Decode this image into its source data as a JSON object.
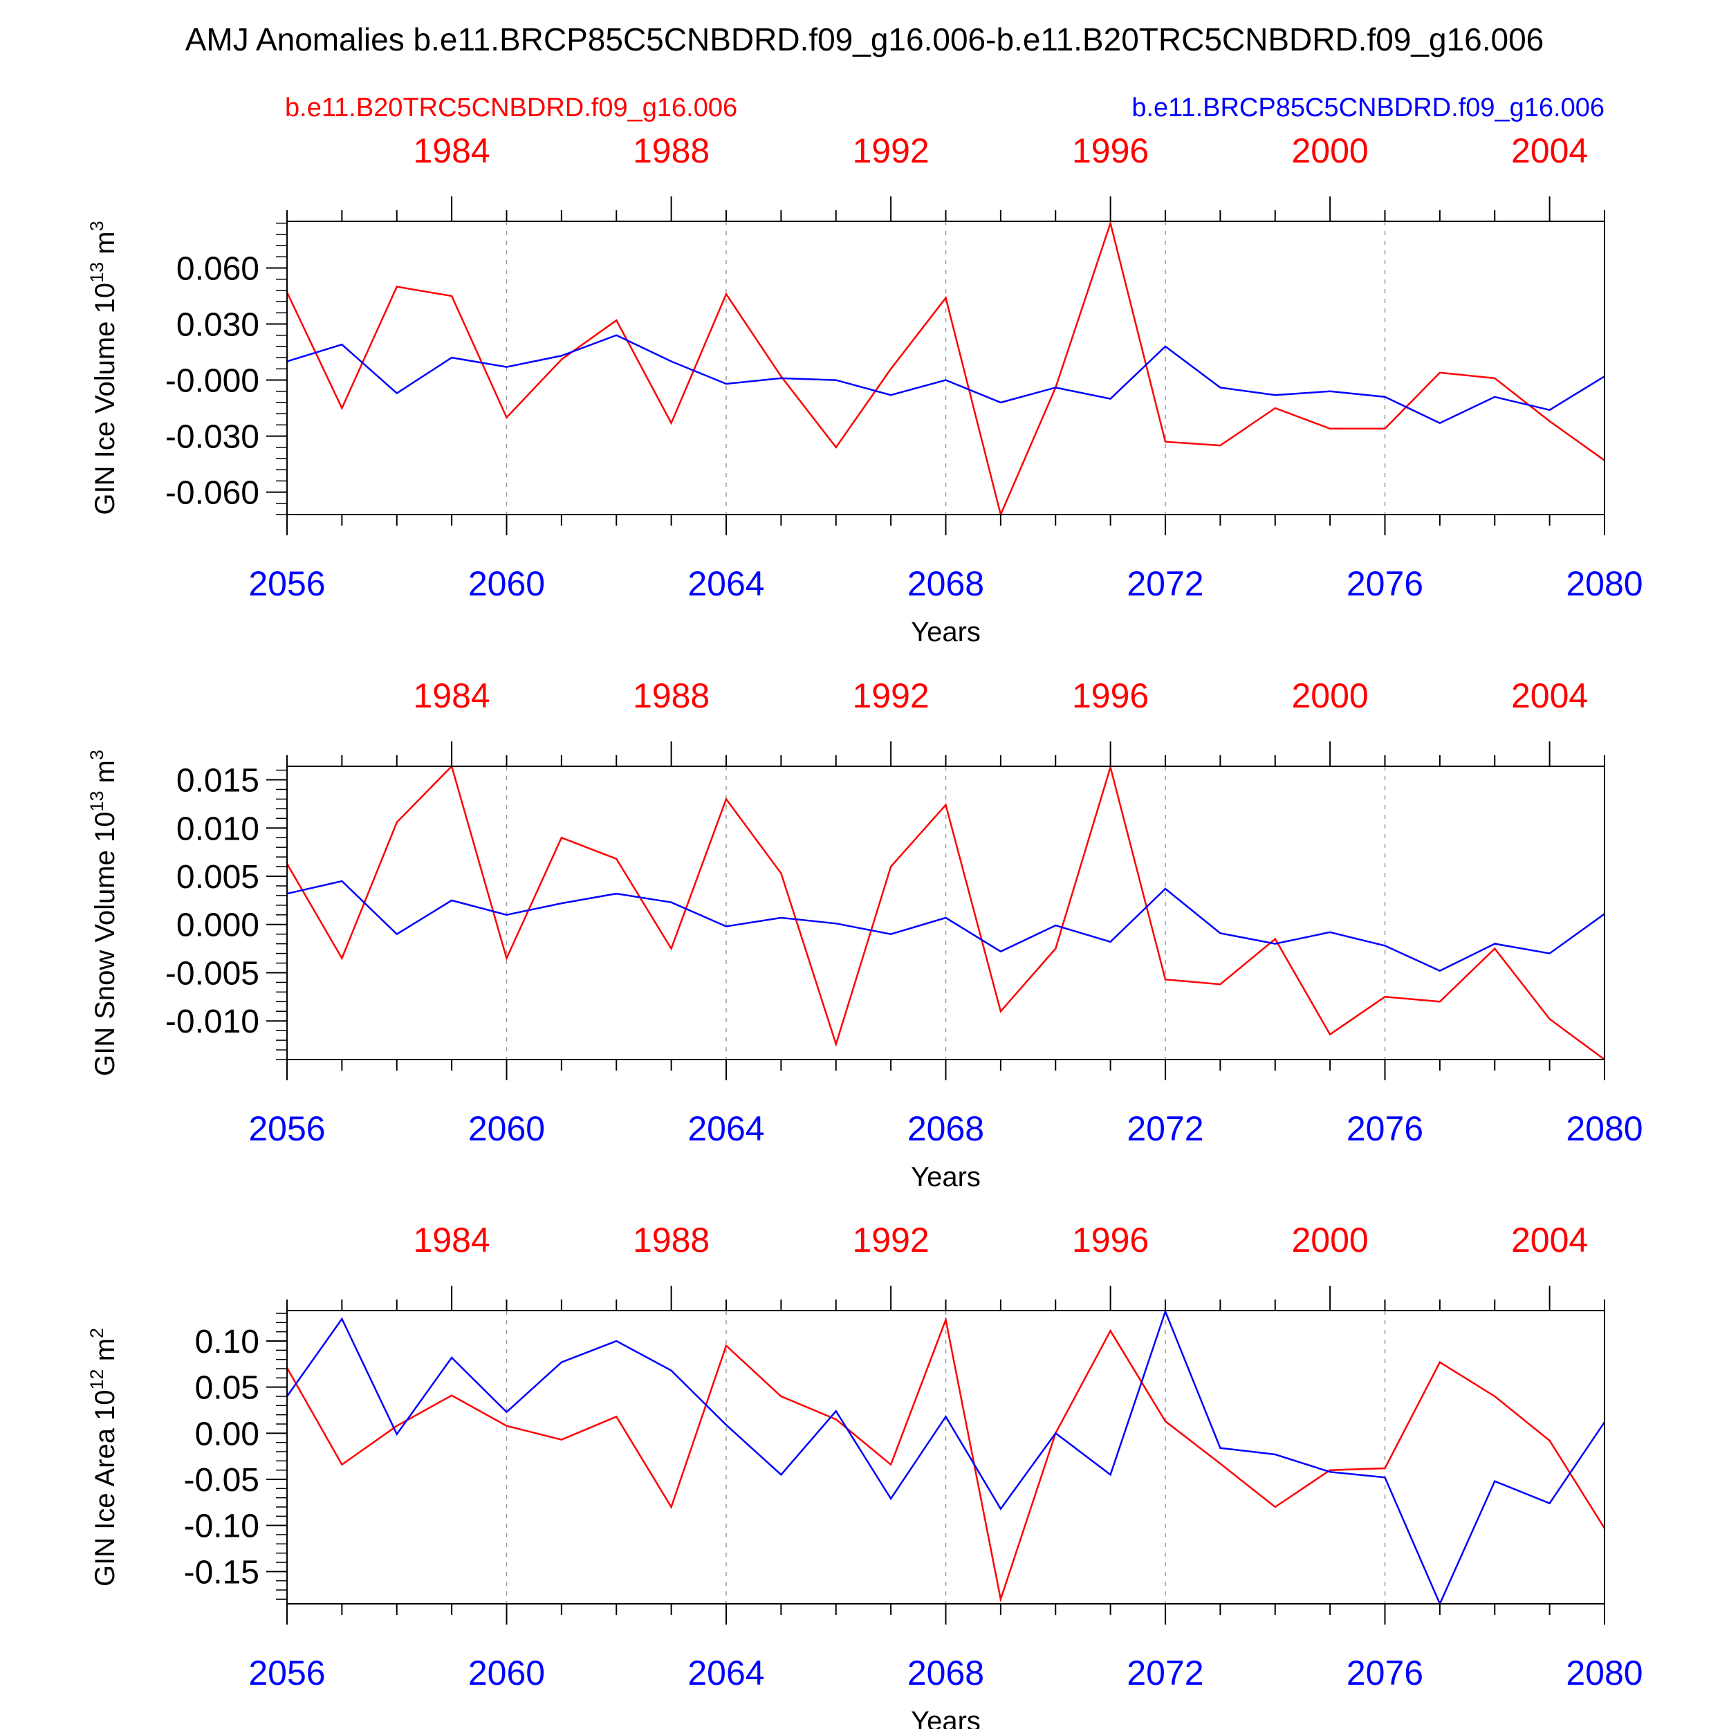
{
  "title": "AMJ Anomalies b.e11.BRCP85C5CNBDRD.f09_g16.006-b.e11.B20TRC5CNBDRD.f09_g16.006",
  "legend": {
    "red_label": "b.e11.B20TRC5CNBDRD.f09_g16.006",
    "blue_label": "b.e11.BRCP85C5CNBDRD.f09_g16.006"
  },
  "colors": {
    "red": "#ff0000",
    "blue": "#0000ff",
    "frame": "#000000",
    "grid": "#999999"
  },
  "chart_data": [
    {
      "type": "line",
      "ylabel": "GIN Ice Volume 10",
      "ylabel_exp": "13",
      "ylabel_unit": " m",
      "ylabel_unit_exp": "3",
      "xlabel": "Years",
      "x": [
        2056,
        2057,
        2058,
        2059,
        2060,
        2061,
        2062,
        2063,
        2064,
        2065,
        2066,
        2067,
        2068,
        2069,
        2070,
        2071,
        2072,
        2073,
        2074,
        2075,
        2076,
        2077,
        2078,
        2079,
        2080
      ],
      "xlim": [
        2056,
        2080
      ],
      "ylim": [
        -0.072,
        0.085
      ],
      "bottom_ticks": [
        2056,
        2060,
        2064,
        2068,
        2072,
        2076,
        2080
      ],
      "bottom_tick_labels": [
        "2056",
        "2060",
        "2064",
        "2068",
        "2072",
        "2076",
        "2080"
      ],
      "top_ticks": [
        1984,
        1988,
        1992,
        1996,
        2000,
        2004
      ],
      "top_tick_labels": [
        "1984",
        "1988",
        "1992",
        "1996",
        "2000",
        "2004"
      ],
      "top_offset": 75,
      "grid_vertical": [
        2060,
        2064,
        2068,
        2072,
        2076
      ],
      "yticks": [
        0.06,
        0.03,
        0.0,
        -0.03,
        -0.06
      ],
      "ytick_labels": [
        "0.060",
        "0.030",
        "-0.000",
        "-0.030",
        "-0.060"
      ],
      "yminor_step": 0.006,
      "series": [
        {
          "name": "b.e11.B20TRC5CNBDRD.f09_g16.006",
          "color": "red",
          "values": [
            0.047,
            -0.015,
            0.05,
            0.045,
            -0.02,
            0.011,
            0.032,
            -0.023,
            0.046,
            0.002,
            -0.036,
            0.006,
            0.044,
            -0.072,
            -0.004,
            0.084,
            -0.033,
            -0.035,
            -0.015,
            -0.026,
            -0.026,
            0.004,
            0.001,
            -0.022,
            -0.043
          ]
        },
        {
          "name": "b.e11.BRCP85C5CNBDRD.f09_g16.006",
          "color": "blue",
          "values": [
            0.01,
            0.019,
            -0.007,
            0.012,
            0.007,
            0.013,
            0.024,
            0.01,
            -0.002,
            0.001,
            0.0,
            -0.008,
            0.0,
            -0.012,
            -0.004,
            -0.01,
            0.018,
            -0.004,
            -0.008,
            -0.006,
            -0.009,
            -0.023,
            -0.009,
            -0.016,
            0.002
          ]
        }
      ]
    },
    {
      "type": "line",
      "ylabel": "GIN Snow Volume 10",
      "ylabel_exp": "13",
      "ylabel_unit": " m",
      "ylabel_unit_exp": "3",
      "xlabel": "Years",
      "x": [
        2056,
        2057,
        2058,
        2059,
        2060,
        2061,
        2062,
        2063,
        2064,
        2065,
        2066,
        2067,
        2068,
        2069,
        2070,
        2071,
        2072,
        2073,
        2074,
        2075,
        2076,
        2077,
        2078,
        2079,
        2080
      ],
      "xlim": [
        2056,
        2080
      ],
      "ylim": [
        -0.014,
        0.0164
      ],
      "bottom_ticks": [
        2056,
        2060,
        2064,
        2068,
        2072,
        2076,
        2080
      ],
      "bottom_tick_labels": [
        "2056",
        "2060",
        "2064",
        "2068",
        "2072",
        "2076",
        "2080"
      ],
      "top_ticks": [
        1984,
        1988,
        1992,
        1996,
        2000,
        2004
      ],
      "top_tick_labels": [
        "1984",
        "1988",
        "1992",
        "1996",
        "2000",
        "2004"
      ],
      "top_offset": 75,
      "grid_vertical": [
        2060,
        2064,
        2068,
        2072,
        2076
      ],
      "yticks": [
        0.015,
        0.01,
        0.005,
        0.0,
        -0.005,
        -0.01
      ],
      "ytick_labels": [
        "0.015",
        "0.010",
        "0.005",
        "0.000",
        "-0.005",
        "-0.010"
      ],
      "yminor_step": 0.001,
      "series": [
        {
          "name": "b.e11.B20TRC5CNBDRD.f09_g16.006",
          "color": "red",
          "values": [
            0.0063,
            -0.0035,
            0.0106,
            0.0164,
            -0.0035,
            0.009,
            0.0068,
            -0.0025,
            0.013,
            0.0053,
            -0.0124,
            0.006,
            0.0124,
            -0.009,
            -0.0025,
            0.0163,
            -0.0057,
            -0.0062,
            -0.0015,
            -0.0114,
            -0.0075,
            -0.008,
            -0.0025,
            -0.0098,
            -0.014
          ]
        },
        {
          "name": "b.e11.BRCP85C5CNBDRD.f09_g16.006",
          "color": "blue",
          "values": [
            0.0032,
            0.0045,
            -0.001,
            0.0025,
            0.001,
            0.0022,
            0.0032,
            0.0023,
            -0.0002,
            0.0007,
            0.0001,
            -0.001,
            0.0007,
            -0.0028,
            -0.0001,
            -0.0018,
            0.0037,
            -0.0009,
            -0.002,
            -0.0008,
            -0.0022,
            -0.0048,
            -0.002,
            -0.003,
            0.0011
          ]
        }
      ]
    },
    {
      "type": "line",
      "ylabel": "GIN Ice Area 10",
      "ylabel_exp": "12",
      "ylabel_unit": " m",
      "ylabel_unit_exp": "2",
      "xlabel": "Years",
      "x": [
        2056,
        2057,
        2058,
        2059,
        2060,
        2061,
        2062,
        2063,
        2064,
        2065,
        2066,
        2067,
        2068,
        2069,
        2070,
        2071,
        2072,
        2073,
        2074,
        2075,
        2076,
        2077,
        2078,
        2079,
        2080
      ],
      "xlim": [
        2056,
        2080
      ],
      "ylim": [
        -0.185,
        0.133
      ],
      "bottom_ticks": [
        2056,
        2060,
        2064,
        2068,
        2072,
        2076,
        2080
      ],
      "bottom_tick_labels": [
        "2056",
        "2060",
        "2064",
        "2068",
        "2072",
        "2076",
        "2080"
      ],
      "top_ticks": [
        1984,
        1988,
        1992,
        1996,
        2000,
        2004
      ],
      "top_tick_labels": [
        "1984",
        "1988",
        "1992",
        "1996",
        "2000",
        "2004"
      ],
      "top_offset": 75,
      "grid_vertical": [
        2060,
        2064,
        2068,
        2072,
        2076
      ],
      "yticks": [
        0.1,
        0.05,
        0.0,
        -0.05,
        -0.1,
        -0.15
      ],
      "ytick_labels": [
        "0.10",
        "0.05",
        "0.00",
        "-0.05",
        "-0.10",
        "-0.15"
      ],
      "yminor_step": 0.01,
      "series": [
        {
          "name": "b.e11.B20TRC5CNBDRD.f09_g16.006",
          "color": "red",
          "values": [
            0.071,
            -0.034,
            0.008,
            0.041,
            0.008,
            -0.007,
            0.018,
            -0.08,
            0.095,
            0.04,
            0.015,
            -0.034,
            0.123,
            -0.18,
            0.0,
            0.111,
            0.013,
            -0.033,
            -0.08,
            -0.04,
            -0.038,
            0.077,
            0.04,
            -0.008,
            -0.103
          ]
        },
        {
          "name": "b.e11.BRCP85C5CNBDRD.f09_g16.006",
          "color": "blue",
          "values": [
            0.04,
            0.124,
            -0.001,
            0.082,
            0.023,
            0.077,
            0.1,
            0.068,
            0.009,
            -0.045,
            0.024,
            -0.071,
            0.018,
            -0.082,
            0.0,
            -0.045,
            0.132,
            -0.016,
            -0.023,
            -0.042,
            -0.048,
            -0.185,
            -0.052,
            -0.076,
            0.012
          ]
        }
      ]
    }
  ]
}
